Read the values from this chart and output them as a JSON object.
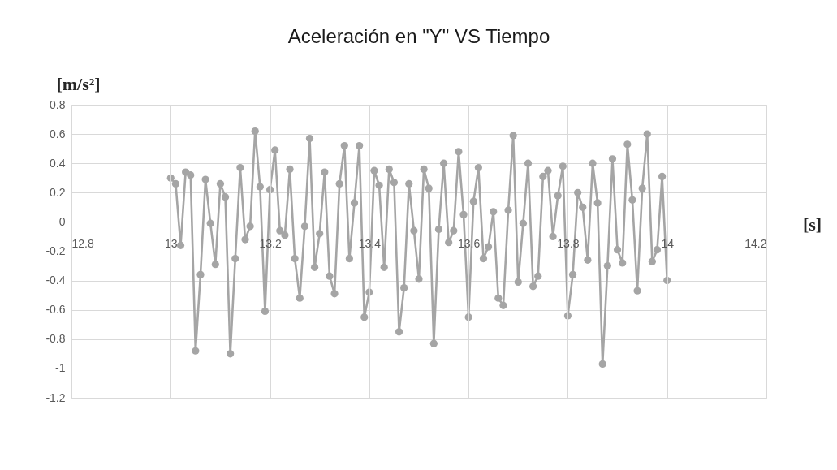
{
  "chart_data": {
    "type": "line",
    "title": "Aceleración en \"Y\" VS Tiempo",
    "xlabel": "[s]",
    "ylabel": "[m/s²]",
    "x": [
      13.0,
      13.01,
      13.02,
      13.03,
      13.04,
      13.05,
      13.06,
      13.07,
      13.08,
      13.09,
      13.1,
      13.11,
      13.12,
      13.13,
      13.14,
      13.15,
      13.16,
      13.17,
      13.18,
      13.19,
      13.2,
      13.21,
      13.22,
      13.23,
      13.24,
      13.25,
      13.26,
      13.27,
      13.28,
      13.29,
      13.3,
      13.31,
      13.32,
      13.33,
      13.34,
      13.35,
      13.36,
      13.37,
      13.38,
      13.39,
      13.4,
      13.41,
      13.42,
      13.43,
      13.44,
      13.45,
      13.46,
      13.47,
      13.48,
      13.49,
      13.5,
      13.51,
      13.52,
      13.53,
      13.54,
      13.55,
      13.56,
      13.57,
      13.58,
      13.59,
      13.6,
      13.61,
      13.62,
      13.63,
      13.64,
      13.65,
      13.66,
      13.67,
      13.68,
      13.69,
      13.7,
      13.71,
      13.72,
      13.73,
      13.74,
      13.75,
      13.76,
      13.77,
      13.78,
      13.79,
      13.8,
      13.81,
      13.82,
      13.83,
      13.84,
      13.85,
      13.86,
      13.87,
      13.88,
      13.89,
      13.9,
      13.91,
      13.92,
      13.93,
      13.94,
      13.95,
      13.96,
      13.97,
      13.98,
      13.99,
      14.0
    ],
    "values": [
      0.3,
      0.26,
      -0.16,
      0.34,
      0.32,
      -0.88,
      -0.36,
      0.29,
      -0.01,
      -0.29,
      0.26,
      0.17,
      -0.9,
      -0.25,
      0.37,
      -0.12,
      -0.03,
      0.62,
      0.24,
      -0.61,
      0.22,
      0.49,
      -0.06,
      -0.09,
      0.36,
      -0.25,
      -0.52,
      -0.03,
      0.57,
      -0.31,
      -0.08,
      0.34,
      -0.37,
      -0.49,
      0.26,
      0.52,
      -0.25,
      0.13,
      0.52,
      -0.65,
      -0.48,
      0.35,
      0.25,
      -0.31,
      0.36,
      0.27,
      -0.75,
      -0.45,
      0.26,
      -0.06,
      -0.39,
      0.36,
      0.23,
      -0.83,
      -0.05,
      0.4,
      -0.14,
      -0.06,
      0.48,
      0.05,
      -0.65,
      0.14,
      0.37,
      -0.25,
      -0.17,
      0.07,
      -0.52,
      -0.57,
      0.08,
      0.59,
      -0.41,
      -0.01,
      0.4,
      -0.44,
      -0.37,
      0.31,
      0.35,
      -0.1,
      0.18,
      0.38,
      -0.64,
      -0.36,
      0.2,
      0.1,
      -0.26,
      0.4,
      0.13,
      -0.97,
      -0.3,
      0.43,
      -0.19,
      -0.28,
      0.53,
      0.15,
      -0.47,
      0.23,
      0.6,
      -0.27,
      -0.19,
      0.31,
      -0.4
    ],
    "color": "#a5a5a5",
    "marker": "circle",
    "xlim": [
      12.8,
      14.2
    ],
    "xticks": [
      12.8,
      13,
      13.2,
      13.4,
      13.6,
      13.8,
      14,
      14.2
    ],
    "ylim": [
      -1.2,
      0.8
    ],
    "yticks": [
      -1.2,
      -1,
      -0.8,
      -0.6,
      -0.4,
      -0.2,
      0,
      0.2,
      0.4,
      0.6,
      0.8
    ],
    "grid": true
  }
}
